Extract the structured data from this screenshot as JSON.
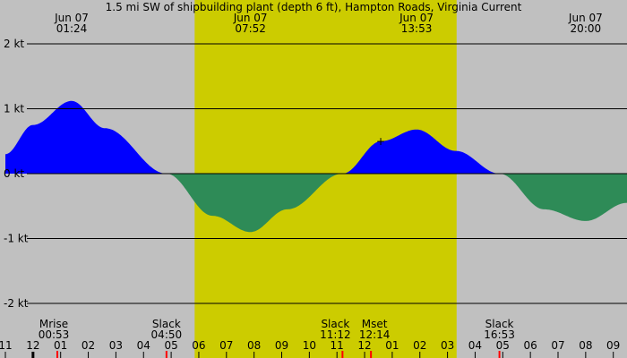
{
  "chart_data": {
    "type": "area",
    "title": "1.5 mi SW of shipbuilding plant (depth 6 ft), Hampton Roads, Virginia Current",
    "x_unit": "hour",
    "y_unit": "kt",
    "ylim": [
      -2.15,
      2.5
    ],
    "y_ticks": [
      {
        "value": 2,
        "label": "2 kt"
      },
      {
        "value": 1,
        "label": "1 kt"
      },
      {
        "value": 0,
        "label": "0 kt"
      },
      {
        "value": -1,
        "label": "-1 kt"
      },
      {
        "value": -2,
        "label": "-2 kt"
      }
    ],
    "xlim": [
      23.0,
      33.7
    ],
    "daylight": {
      "start": 29.85,
      "end": 39.33
    },
    "top_times": [
      {
        "date": "Jun 07",
        "time": "01:24",
        "hour": 25.4
      },
      {
        "date": "Jun 07",
        "time": "07:52",
        "hour": 31.87
      },
      {
        "date": "Jun 07",
        "time": "13:53",
        "hour": 37.88
      },
      {
        "date": "Jun 07",
        "time": "20:00",
        "hour": 44.0
      }
    ],
    "current_curve": [
      {
        "hour": 23.0,
        "kt": 0.3
      },
      {
        "hour": 24.0,
        "kt": 0.75
      },
      {
        "hour": 25.4,
        "kt": 1.12
      },
      {
        "hour": 26.6,
        "kt": 0.7
      },
      {
        "hour": 28.83,
        "kt": 0.0
      },
      {
        "hour": 30.5,
        "kt": -0.65
      },
      {
        "hour": 31.87,
        "kt": -0.9
      },
      {
        "hour": 33.2,
        "kt": -0.55
      },
      {
        "hour": 35.2,
        "kt": 0.0
      },
      {
        "hour": 36.6,
        "kt": 0.5
      },
      {
        "hour": 37.88,
        "kt": 0.68
      },
      {
        "hour": 39.3,
        "kt": 0.35
      },
      {
        "hour": 40.88,
        "kt": 0.0
      },
      {
        "hour": 42.5,
        "kt": -0.55
      },
      {
        "hour": 44.0,
        "kt": -0.73
      },
      {
        "hour": 45.5,
        "kt": -0.45
      }
    ],
    "hour_ticks": [
      "11",
      "12",
      "01",
      "02",
      "03",
      "04",
      "05",
      "06",
      "07",
      "08",
      "09",
      "10",
      "11",
      "12",
      "01",
      "02",
      "03",
      "04",
      "05",
      "06",
      "07",
      "08",
      "09"
    ],
    "events": [
      {
        "name": "Mrise",
        "time": "00:53",
        "hour": 24.88
      },
      {
        "name": "Slack",
        "time": "04:50",
        "hour": 28.83
      },
      {
        "name": "Slack",
        "time": "11:12",
        "hour": 35.2
      },
      {
        "name": "Mset",
        "time": "12:14",
        "hour": 36.23
      },
      {
        "name": "Slack",
        "time": "16:53",
        "hour": 40.88
      }
    ],
    "colors": {
      "background": "#c0c0c0",
      "daylight": "#cccc00",
      "flood": "#0000ff",
      "ebb": "#2e8b57",
      "grid": "#000000"
    },
    "grid": true
  }
}
